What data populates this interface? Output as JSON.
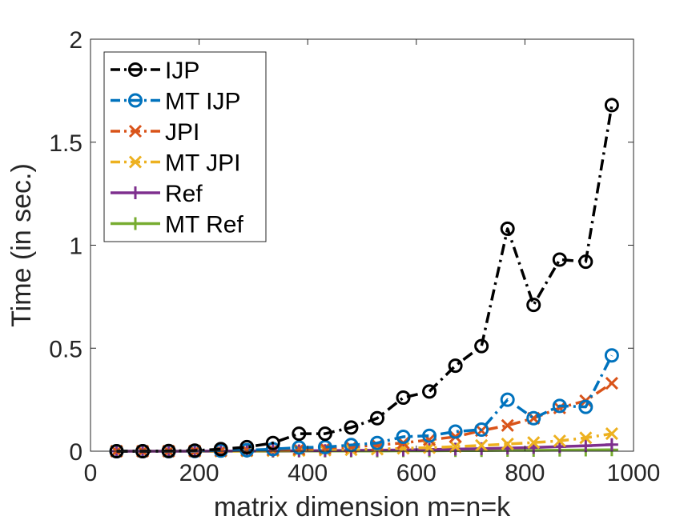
{
  "chart_data": {
    "type": "line",
    "xlabel": "matrix dimension m=n=k",
    "ylabel": "Time (in sec.)",
    "xlim": [
      0,
      1000
    ],
    "ylim": [
      0,
      2
    ],
    "xticks": [
      "0",
      "200",
      "400",
      "600",
      "800",
      "1000"
    ],
    "yticks": [
      "0",
      "0.5",
      "1",
      "1.5",
      "2"
    ],
    "grid": false,
    "legend_position": "top-left",
    "x": [
      48,
      96,
      144,
      192,
      240,
      288,
      336,
      384,
      432,
      480,
      528,
      576,
      624,
      672,
      720,
      768,
      816,
      864,
      912,
      960
    ],
    "series": [
      {
        "name": "IJP",
        "color": "#000000",
        "marker": "circle",
        "line": "dashdot",
        "values": [
          0.0,
          0.0,
          0.001,
          0.003,
          0.01,
          0.02,
          0.04,
          0.085,
          0.085,
          0.115,
          0.16,
          0.26,
          0.29,
          0.415,
          0.51,
          1.08,
          0.71,
          0.93,
          0.92,
          1.68
        ]
      },
      {
        "name": "MT IJP",
        "color": "#0072BD",
        "marker": "circle",
        "line": "dashdot",
        "values": [
          0.0,
          0.0,
          0.0,
          0.001,
          0.003,
          0.005,
          0.01,
          0.018,
          0.02,
          0.03,
          0.04,
          0.07,
          0.075,
          0.095,
          0.105,
          0.25,
          0.16,
          0.22,
          0.215,
          0.465
        ]
      },
      {
        "name": "JPI",
        "color": "#D95319",
        "marker": "x",
        "line": "dashdot",
        "values": [
          0.0,
          0.0,
          0.0,
          0.001,
          0.002,
          0.004,
          0.007,
          0.01,
          0.015,
          0.02,
          0.03,
          0.04,
          0.055,
          0.07,
          0.1,
          0.125,
          0.16,
          0.21,
          0.245,
          0.33
        ]
      },
      {
        "name": "MT JPI",
        "color": "#EDB120",
        "marker": "x",
        "line": "dashdot",
        "values": [
          0.0,
          0.0,
          0.0,
          0.0,
          0.0,
          0.001,
          0.002,
          0.003,
          0.005,
          0.007,
          0.01,
          0.014,
          0.017,
          0.022,
          0.028,
          0.035,
          0.042,
          0.05,
          0.065,
          0.085
        ]
      },
      {
        "name": "Ref",
        "color": "#7E2F8E",
        "marker": "plus",
        "line": "solid",
        "values": [
          0.0,
          0.0,
          0.0,
          0.0,
          0.001,
          0.001,
          0.002,
          0.002,
          0.003,
          0.004,
          0.005,
          0.006,
          0.008,
          0.01,
          0.012,
          0.015,
          0.018,
          0.022,
          0.026,
          0.032
        ]
      },
      {
        "name": "MT Ref",
        "color": "#77AC30",
        "marker": "plus",
        "line": "solid",
        "values": [
          0.0,
          0.0,
          0.0,
          0.0,
          0.0,
          0.0,
          0.0,
          0.001,
          0.001,
          0.001,
          0.001,
          0.002,
          0.002,
          0.003,
          0.003,
          0.004,
          0.004,
          0.005,
          0.006,
          0.007
        ]
      }
    ]
  }
}
